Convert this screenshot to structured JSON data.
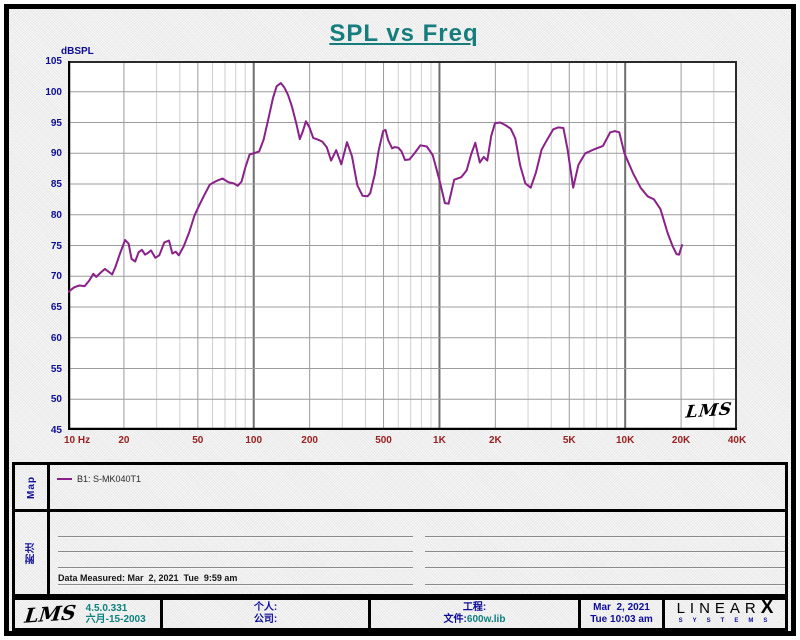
{
  "title": "SPL vs Freq",
  "colors": {
    "title_teal": "#157d7d",
    "axis_navy": "#0d0d99",
    "freq_red": "#9b2020",
    "curve_purple": "#8a2089",
    "footer_teal": "#0e8080"
  },
  "chart_data": {
    "type": "line",
    "title": "SPL vs Freq",
    "x_axis": {
      "scale": "log",
      "min": 10,
      "max": 40000,
      "unit": "Hz",
      "ticks": [
        {
          "f": 10,
          "label": "10 Hz"
        },
        {
          "f": 20,
          "label": "20"
        },
        {
          "f": 50,
          "label": "50"
        },
        {
          "f": 100,
          "label": "100"
        },
        {
          "f": 200,
          "label": "200"
        },
        {
          "f": 500,
          "label": "500"
        },
        {
          "f": 1000,
          "label": "1K"
        },
        {
          "f": 2000,
          "label": "2K"
        },
        {
          "f": 5000,
          "label": "5K"
        },
        {
          "f": 10000,
          "label": "10K"
        },
        {
          "f": 20000,
          "label": "20K"
        },
        {
          "f": 40000,
          "label": "40K"
        }
      ]
    },
    "y_axis": {
      "label": "dBSPL",
      "min": 45,
      "max": 105,
      "step": 5,
      "tick_labels": [
        "105",
        "100",
        "95",
        "90",
        "85",
        "80",
        "75",
        "70",
        "65",
        "60",
        "55",
        "50",
        "45"
      ]
    },
    "grid": "log-minor",
    "watermark": "LMS",
    "series": [
      {
        "name": "B1: S-MK040T1",
        "color": "#8a2089",
        "points": [
          [
            10,
            67.4
          ],
          [
            10.8,
            68.2
          ],
          [
            11.5,
            68.5
          ],
          [
            12.3,
            68.4
          ],
          [
            13,
            69.3
          ],
          [
            13.7,
            70.4
          ],
          [
            14.2,
            69.9
          ],
          [
            15,
            70.6
          ],
          [
            15.8,
            71.2
          ],
          [
            16.6,
            70.7
          ],
          [
            17.3,
            70.3
          ],
          [
            18,
            71.5
          ],
          [
            19,
            73.6
          ],
          [
            20.3,
            75.9
          ],
          [
            21.2,
            75.3
          ],
          [
            22,
            72.8
          ],
          [
            23,
            72.4
          ],
          [
            24,
            73.9
          ],
          [
            25,
            74.3
          ],
          [
            26,
            73.5
          ],
          [
            27,
            73.8
          ],
          [
            28,
            74.2
          ],
          [
            29.5,
            73.0
          ],
          [
            31,
            73.4
          ],
          [
            33,
            75.5
          ],
          [
            35,
            75.8
          ],
          [
            36.5,
            73.7
          ],
          [
            38,
            74.0
          ],
          [
            39.5,
            73.4
          ],
          [
            42,
            74.9
          ],
          [
            45,
            77.2
          ],
          [
            48,
            79.9
          ],
          [
            51,
            81.6
          ],
          [
            54,
            83.1
          ],
          [
            58,
            84.9
          ],
          [
            63,
            85.5
          ],
          [
            68,
            85.9
          ],
          [
            73,
            85.3
          ],
          [
            78,
            85.1
          ],
          [
            82,
            84.7
          ],
          [
            86,
            85.4
          ],
          [
            90,
            87.6
          ],
          [
            95,
            89.8
          ],
          [
            100,
            90.0
          ],
          [
            107,
            90.3
          ],
          [
            113,
            92.2
          ],
          [
            120,
            95.6
          ],
          [
            127,
            99.0
          ],
          [
            133,
            100.9
          ],
          [
            140,
            101.4
          ],
          [
            146,
            100.7
          ],
          [
            153,
            99.5
          ],
          [
            161,
            97.5
          ],
          [
            170,
            94.7
          ],
          [
            177,
            92.3
          ],
          [
            184,
            93.6
          ],
          [
            191,
            95.2
          ],
          [
            199,
            94.3
          ],
          [
            209,
            92.5
          ],
          [
            222,
            92.2
          ],
          [
            234,
            91.9
          ],
          [
            247,
            91.0
          ],
          [
            261,
            88.8
          ],
          [
            278,
            90.5
          ],
          [
            296,
            88.2
          ],
          [
            318,
            91.8
          ],
          [
            338,
            89.5
          ],
          [
            361,
            84.8
          ],
          [
            385,
            83.1
          ],
          [
            410,
            83.0
          ],
          [
            424,
            83.5
          ],
          [
            448,
            86.5
          ],
          [
            470,
            90.4
          ],
          [
            497,
            93.6
          ],
          [
            512,
            93.8
          ],
          [
            530,
            92.1
          ],
          [
            556,
            90.8
          ],
          [
            575,
            91.0
          ],
          [
            600,
            90.9
          ],
          [
            625,
            90.3
          ],
          [
            652,
            88.9
          ],
          [
            690,
            89.0
          ],
          [
            730,
            89.9
          ],
          [
            790,
            91.3
          ],
          [
            855,
            91.1
          ],
          [
            920,
            89.7
          ],
          [
            1000,
            85.6
          ],
          [
            1070,
            81.9
          ],
          [
            1120,
            81.8
          ],
          [
            1200,
            85.7
          ],
          [
            1310,
            86.1
          ],
          [
            1400,
            87.2
          ],
          [
            1480,
            89.8
          ],
          [
            1560,
            91.7
          ],
          [
            1650,
            88.5
          ],
          [
            1730,
            89.4
          ],
          [
            1810,
            88.8
          ],
          [
            1900,
            92.8
          ],
          [
            1990,
            94.9
          ],
          [
            2120,
            95.0
          ],
          [
            2260,
            94.6
          ],
          [
            2420,
            94.0
          ],
          [
            2560,
            92.4
          ],
          [
            2720,
            88.0
          ],
          [
            2900,
            85.1
          ],
          [
            3100,
            84.4
          ],
          [
            3310,
            86.9
          ],
          [
            3550,
            90.6
          ],
          [
            3800,
            92.2
          ],
          [
            4100,
            93.9
          ],
          [
            4360,
            94.2
          ],
          [
            4650,
            94.1
          ],
          [
            4900,
            90.6
          ],
          [
            5250,
            84.4
          ],
          [
            5600,
            88.1
          ],
          [
            6100,
            90.0
          ],
          [
            6750,
            90.6
          ],
          [
            7600,
            91.2
          ],
          [
            8300,
            93.4
          ],
          [
            8800,
            93.6
          ],
          [
            9300,
            93.4
          ],
          [
            9900,
            90.0
          ],
          [
            11000,
            86.8
          ],
          [
            12100,
            84.4
          ],
          [
            13200,
            83.0
          ],
          [
            14300,
            82.5
          ],
          [
            15500,
            80.9
          ],
          [
            16900,
            77.1
          ],
          [
            18000,
            74.9
          ],
          [
            18900,
            73.6
          ],
          [
            19500,
            73.5
          ],
          [
            20300,
            75.2
          ]
        ]
      }
    ]
  },
  "legend": {
    "section_label": "Map",
    "entries": [
      {
        "label": "B1: S-MK040T1",
        "color": "#8a2089"
      }
    ]
  },
  "notes": {
    "section_label": "附注",
    "data_measured": "Data Measured: Mar  2, 2021  Tue  9:59 am"
  },
  "footer": {
    "logo": "LMS",
    "version": "4.5.0.331",
    "version_date": "六月-15-2003",
    "personal_label": "个人:",
    "company_label": "公司:",
    "project_label": "工程:",
    "file_label": "文件:",
    "file_value": "600w.lib",
    "date_line1": "Mar  2, 2021",
    "date_line2": "Tue 10:03 am",
    "brand_main": "LINEAR",
    "brand_x": "X",
    "brand_sub": "SYSTEMS"
  }
}
